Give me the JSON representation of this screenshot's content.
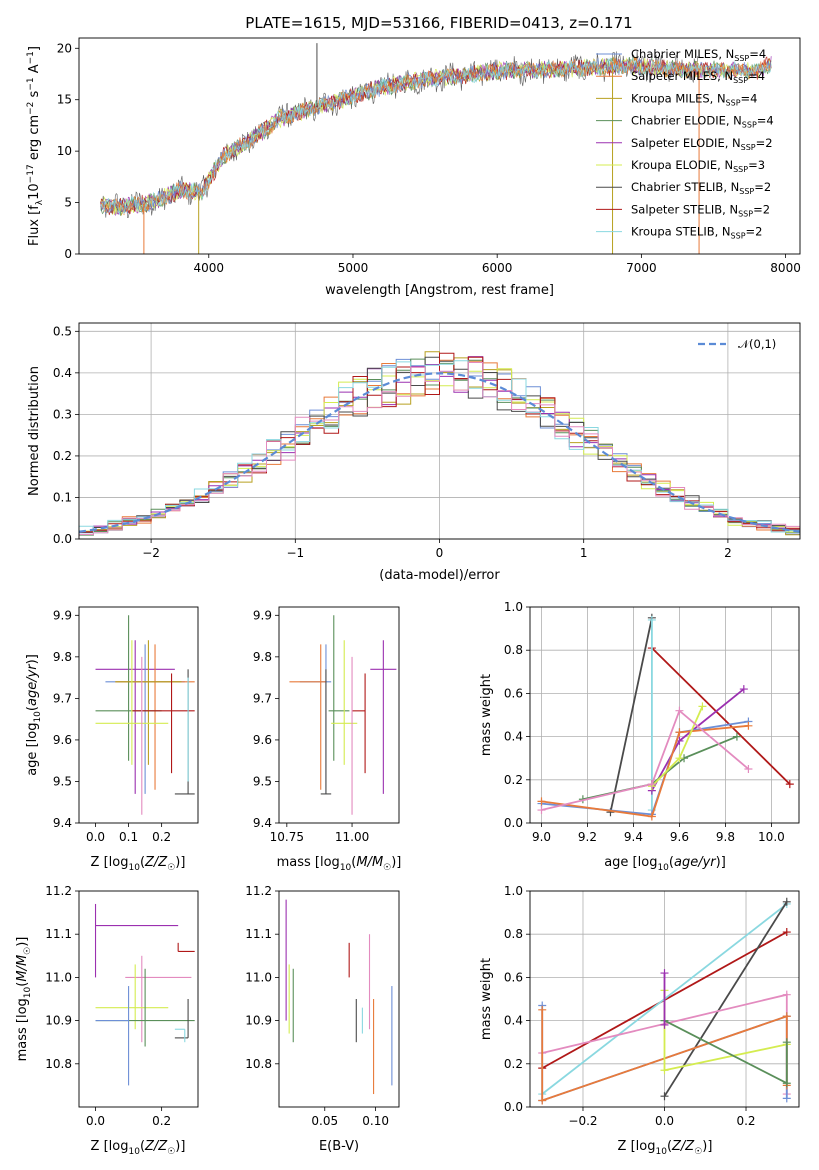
{
  "figure": {
    "title": "PLATE=1615, MJD=53166, FIBERID=0413, z=0.171"
  },
  "colors": {
    "Chabrier MILES": "#6d8fd6",
    "Salpeter MILES": "#e87a3a",
    "Kroupa MILES": "#b8a020",
    "Chabrier ELODIE": "#5a8f5a",
    "Salpeter ELODIE": "#9b30b0",
    "Kroupa ELODIE": "#d4ec50",
    "Chabrier STELIB": "#4a4a4a",
    "Salpeter STELIB": "#b01818",
    "Kroupa STELIB": "#8ad8e0",
    "pink": "#e38bbf",
    "gauss": "#5b8bd6"
  },
  "chart_data": [
    {
      "id": "spectrum",
      "type": "line",
      "title": "PLATE=1615, MJD=53166, FIBERID=0413, z=0.171",
      "xlabel": "wavelength [Angstrom, rest frame]",
      "ylabel": "Flux [f_λ 10^-17 erg cm^-2 s^-1 A^-1]",
      "xlim": [
        3100,
        8100
      ],
      "ylim": [
        0,
        21
      ],
      "xticks": [
        4000,
        5000,
        6000,
        7000,
        8000
      ],
      "yticks": [
        0,
        5,
        10,
        15,
        20
      ],
      "legend": "upper-right",
      "legend_entries": [
        {
          "key": "Chabrier MILES",
          "label": "Chabrier MILES, N",
          "sub": "SSP",
          "tail": "=4"
        },
        {
          "key": "Salpeter MILES",
          "label": "Salpeter MILES, N",
          "sub": "SSP",
          "tail": "=4"
        },
        {
          "key": "Kroupa MILES",
          "label": "Kroupa MILES, N",
          "sub": "SSP",
          "tail": "=4"
        },
        {
          "key": "Chabrier ELODIE",
          "label": "Chabrier ELODIE, N",
          "sub": "SSP",
          "tail": "=4"
        },
        {
          "key": "Salpeter ELODIE",
          "label": "Salpeter ELODIE, N",
          "sub": "SSP",
          "tail": "=2"
        },
        {
          "key": "Kroupa ELODIE",
          "label": "Kroupa ELODIE, N",
          "sub": "SSP",
          "tail": "=3"
        },
        {
          "key": "Chabrier STELIB",
          "label": "Chabrier STELIB, N",
          "sub": "SSP",
          "tail": "=2"
        },
        {
          "key": "Salpeter STELIB",
          "label": "Salpeter STELIB, N",
          "sub": "SSP",
          "tail": "=2"
        },
        {
          "key": "Kroupa STELIB",
          "label": "Kroupa STELIB, N",
          "sub": "SSP",
          "tail": "=2"
        }
      ],
      "continuum": [
        [
          3250,
          4.7
        ],
        [
          3400,
          4.6
        ],
        [
          3600,
          5.0
        ],
        [
          3800,
          6.2
        ],
        [
          3950,
          6.0
        ],
        [
          4100,
          9.5
        ],
        [
          4300,
          11.2
        ],
        [
          4500,
          13.2
        ],
        [
          4800,
          14.5
        ],
        [
          5000,
          15.3
        ],
        [
          5200,
          16.2
        ],
        [
          5500,
          17.0
        ],
        [
          5800,
          17.4
        ],
        [
          6000,
          17.8
        ],
        [
          6300,
          17.9
        ],
        [
          6600,
          18.1
        ],
        [
          6900,
          18.3
        ],
        [
          7200,
          18.0
        ],
        [
          7500,
          17.9
        ],
        [
          7800,
          17.8
        ],
        [
          7900,
          18.5
        ]
      ],
      "features": [
        {
          "wl": 3550,
          "v": 0,
          "series": "Salpeter MILES"
        },
        {
          "wl": 3930,
          "v": 0,
          "series": "Kroupa MILES"
        },
        {
          "wl": 4750,
          "v": 20.5,
          "series": "Chabrier STELIB"
        },
        {
          "wl": 6800,
          "v": 0,
          "series": "Kroupa MILES"
        },
        {
          "wl": 7400,
          "v": 0,
          "series": "Salpeter MILES"
        }
      ]
    },
    {
      "id": "residuals",
      "type": "histogram",
      "xlabel": "(data-model)/error",
      "ylabel": "Normed distribution",
      "xlim": [
        -2.5,
        2.5
      ],
      "ylim": [
        0,
        0.52
      ],
      "xticks": [
        -2,
        -1,
        0,
        1,
        2
      ],
      "yticks": [
        0.0,
        0.1,
        0.2,
        0.3,
        0.4,
        0.5
      ],
      "grid": true,
      "bin_width": 0.1,
      "legend": "upper-right",
      "reference_curve": {
        "label": "𝒩(0,1)",
        "mean": 0,
        "sigma": 1
      }
    },
    {
      "id": "age-vs-Z",
      "type": "errorbar",
      "xlabel": "Z [log10(Z/Z☉)]",
      "ylabel": "age [log10(age/yr)]",
      "xlim": [
        -0.05,
        0.31
      ],
      "ylim": [
        9.4,
        9.92
      ],
      "xticks": [
        0.0,
        0.1,
        0.2
      ],
      "yticks": [
        9.4,
        9.5,
        9.6,
        9.7,
        9.8,
        9.9
      ],
      "points": [
        {
          "series": "Salpeter ELODIE",
          "x": 0.12,
          "xerr": [
            0.12,
            0.12
          ],
          "y": 9.77,
          "yerr": [
            0.3,
            0.07
          ]
        },
        {
          "series": "Chabrier MILES",
          "x": 0.15,
          "xerr": [
            0.12,
            0.12
          ],
          "y": 9.74,
          "yerr": [
            0.27,
            0.09
          ]
        },
        {
          "series": "Salpeter MILES",
          "x": 0.18,
          "xerr": [
            0.12,
            0.12
          ],
          "y": 9.74,
          "yerr": [
            0.26,
            0.09
          ]
        },
        {
          "series": "Chabrier ELODIE",
          "x": 0.1,
          "xerr": [
            0.1,
            0.1
          ],
          "y": 9.67,
          "yerr": [
            0.12,
            0.23
          ]
        },
        {
          "series": "Kroupa MILES",
          "x": 0.16,
          "xerr": [
            0.1,
            0.1
          ],
          "y": 9.74,
          "yerr": [
            0.2,
            0.1
          ]
        },
        {
          "series": "Salpeter STELIB",
          "x": 0.23,
          "xerr": [
            0.12,
            0.07
          ],
          "y": 9.67,
          "yerr": [
            0.15,
            0.09
          ]
        },
        {
          "series": "Kroupa ELODIE",
          "x": 0.11,
          "xerr": [
            0.11,
            0.11
          ],
          "y": 9.64,
          "yerr": [
            0.1,
            0.2
          ]
        },
        {
          "series": "Chabrier STELIB",
          "x": 0.28,
          "xerr": [
            0.04,
            0.02
          ],
          "y": 9.47,
          "yerr": [
            0.0,
            0.3
          ]
        },
        {
          "series": "pink",
          "x": 0.14,
          "xerr": [
            0.0,
            0.0
          ],
          "y": 9.6,
          "yerr": [
            0.18,
            0.2
          ]
        },
        {
          "series": "Kroupa STELIB",
          "x": 0.28,
          "xerr": [
            0.0,
            0.0
          ],
          "y": 9.6,
          "yerr": [
            0.1,
            0.15
          ]
        }
      ]
    },
    {
      "id": "age-vs-mass",
      "type": "errorbar",
      "xlabel": "mass [log10(M/M☉)]",
      "ylabel": "",
      "xlim": [
        10.72,
        11.18
      ],
      "ylim": [
        9.4,
        9.92
      ],
      "xticks": [
        10.75,
        11.0
      ],
      "yticks": [
        9.4,
        9.5,
        9.6,
        9.7,
        9.8,
        9.9
      ],
      "points": [
        {
          "series": "Salpeter ELODIE",
          "x": 11.12,
          "xerr": [
            0.05,
            0.05
          ],
          "y": 9.77,
          "yerr": [
            0.3,
            0.07
          ]
        },
        {
          "series": "Chabrier MILES",
          "x": 10.9,
          "xerr": [
            0.1,
            0.02
          ],
          "y": 9.74,
          "yerr": [
            0.27,
            0.09
          ]
        },
        {
          "series": "Salpeter MILES",
          "x": 10.88,
          "xerr": [
            0.12,
            0.02
          ],
          "y": 9.74,
          "yerr": [
            0.26,
            0.09
          ]
        },
        {
          "series": "Chabrier ELODIE",
          "x": 10.93,
          "xerr": [
            0.02,
            0.06
          ],
          "y": 9.67,
          "yerr": [
            0.12,
            0.23
          ]
        },
        {
          "series": "Salpeter STELIB",
          "x": 11.05,
          "xerr": [
            0.05,
            0.0
          ],
          "y": 9.67,
          "yerr": [
            0.15,
            0.09
          ]
        },
        {
          "series": "Kroupa ELODIE",
          "x": 10.97,
          "xerr": [
            0.05,
            0.05
          ],
          "y": 9.64,
          "yerr": [
            0.1,
            0.2
          ]
        },
        {
          "series": "Chabrier STELIB",
          "x": 10.9,
          "xerr": [
            0.02,
            0.02
          ],
          "y": 9.47,
          "yerr": [
            0.0,
            0.3
          ]
        },
        {
          "series": "pink",
          "x": 11.0,
          "xerr": [
            0.0,
            0.0
          ],
          "y": 9.6,
          "yerr": [
            0.18,
            0.2
          ]
        }
      ]
    },
    {
      "id": "weight-vs-age",
      "type": "line",
      "xlabel": "age  [log10(age/yr)]",
      "ylabel": "mass weight",
      "xlim": [
        8.95,
        10.12
      ],
      "ylim": [
        0,
        1
      ],
      "xticks": [
        9.0,
        9.2,
        9.4,
        9.6,
        9.8,
        10.0
      ],
      "yticks": [
        0.0,
        0.2,
        0.4,
        0.6,
        0.8,
        1.0
      ],
      "grid": true,
      "series": [
        {
          "series": "Chabrier STELIB",
          "x": [
            9.3,
            9.48
          ],
          "y": [
            0.05,
            0.95
          ]
        },
        {
          "series": "Salpeter STELIB",
          "x": [
            9.48,
            10.08
          ],
          "y": [
            0.81,
            0.18
          ]
        },
        {
          "series": "Kroupa STELIB",
          "x": [
            9.48,
            9.48
          ],
          "y": [
            0.06,
            0.94
          ]
        },
        {
          "series": "Salpeter ELODIE",
          "x": [
            9.48,
            9.6,
            9.88
          ],
          "y": [
            0.15,
            0.38,
            0.62
          ]
        },
        {
          "series": "Chabrier MILES",
          "x": [
            9.0,
            9.48,
            9.6,
            9.9
          ],
          "y": [
            0.09,
            0.04,
            0.42,
            0.47
          ]
        },
        {
          "series": "Salpeter MILES",
          "x": [
            9.0,
            9.48,
            9.6,
            9.9
          ],
          "y": [
            0.1,
            0.03,
            0.42,
            0.45
          ]
        },
        {
          "series": "Chabrier ELODIE",
          "x": [
            9.18,
            9.48,
            9.62,
            9.85
          ],
          "y": [
            0.11,
            0.18,
            0.3,
            0.4
          ]
        },
        {
          "series": "Kroupa ELODIE",
          "x": [
            9.48,
            9.6,
            9.7
          ],
          "y": [
            0.17,
            0.3,
            0.54
          ]
        },
        {
          "series": "pink",
          "x": [
            9.0,
            9.48,
            9.6,
            9.9
          ],
          "y": [
            0.06,
            0.18,
            0.52,
            0.25
          ]
        }
      ]
    },
    {
      "id": "mass-vs-Z",
      "type": "errorbar",
      "xlabel": "Z [log10(Z/Z☉)]",
      "ylabel": "mass [log10(M/M☉)]",
      "xlim": [
        -0.05,
        0.31
      ],
      "ylim": [
        10.7,
        11.2
      ],
      "xticks": [
        0.0,
        0.2
      ],
      "yticks": [
        10.8,
        10.9,
        11.0,
        11.1,
        11.2
      ],
      "points": [
        {
          "series": "Salpeter ELODIE",
          "x": 0.0,
          "xerr": [
            0.0,
            0.25
          ],
          "y": 11.12,
          "yerr": [
            0.12,
            0.05
          ]
        },
        {
          "series": "Salpeter STELIB",
          "x": 0.25,
          "xerr": [
            0.0,
            0.05
          ],
          "y": 11.06,
          "yerr": [
            0.0,
            0.02
          ]
        },
        {
          "series": "pink",
          "x": 0.14,
          "xerr": [
            0.05,
            0.15
          ],
          "y": 11.0,
          "yerr": [
            0.15,
            0.05
          ]
        },
        {
          "series": "Kroupa ELODIE",
          "x": 0.12,
          "xerr": [
            0.12,
            0.1
          ],
          "y": 10.93,
          "yerr": [
            0.05,
            0.1
          ]
        },
        {
          "series": "Chabrier ELODIE",
          "x": 0.15,
          "xerr": [
            0.15,
            0.15
          ],
          "y": 10.9,
          "yerr": [
            0.06,
            0.12
          ]
        },
        {
          "series": "Chabrier MILES",
          "x": 0.1,
          "xerr": [
            0.1,
            0.0
          ],
          "y": 10.9,
          "yerr": [
            0.15,
            0.08
          ]
        },
        {
          "series": "Chabrier STELIB",
          "x": 0.28,
          "xerr": [
            0.04,
            0.0
          ],
          "y": 10.86,
          "yerr": [
            0.0,
            0.09
          ]
        },
        {
          "series": "Kroupa STELIB",
          "x": 0.27,
          "xerr": [
            0.03,
            0.0
          ],
          "y": 10.88,
          "yerr": [
            0.03,
            0.0
          ]
        }
      ]
    },
    {
      "id": "mass-vs-ebv",
      "type": "errorbar",
      "xlabel": "E(B-V)",
      "ylabel": "",
      "xlim": [
        0.005,
        0.123
      ],
      "ylim": [
        10.7,
        11.2
      ],
      "xticks": [
        0.05,
        0.1
      ],
      "yticks": [
        10.8,
        10.9,
        11.0,
        11.1,
        11.2
      ],
      "points": [
        {
          "series": "Salpeter ELODIE",
          "x": 0.012,
          "xerr": [
            0,
            0
          ],
          "y": 11.0,
          "yerr": [
            0.1,
            0.18
          ]
        },
        {
          "series": "Kroupa ELODIE",
          "x": 0.015,
          "xerr": [
            0,
            0
          ],
          "y": 10.95,
          "yerr": [
            0.08,
            0.08
          ]
        },
        {
          "series": "Chabrier ELODIE",
          "x": 0.019,
          "xerr": [
            0,
            0
          ],
          "y": 10.95,
          "yerr": [
            0.1,
            0.07
          ]
        },
        {
          "series": "Salpeter STELIB",
          "x": 0.074,
          "xerr": [
            0,
            0
          ],
          "y": 11.03,
          "yerr": [
            0.03,
            0.05
          ]
        },
        {
          "series": "Chabrier STELIB",
          "x": 0.081,
          "xerr": [
            0,
            0
          ],
          "y": 10.9,
          "yerr": [
            0.05,
            0.05
          ]
        },
        {
          "series": "Kroupa STELIB",
          "x": 0.087,
          "xerr": [
            0,
            0
          ],
          "y": 10.9,
          "yerr": [
            0.03,
            0.03
          ]
        },
        {
          "series": "pink",
          "x": 0.094,
          "xerr": [
            0,
            0
          ],
          "y": 11.0,
          "yerr": [
            0.12,
            0.1
          ]
        },
        {
          "series": "Salpeter MILES",
          "x": 0.098,
          "xerr": [
            0,
            0
          ],
          "y": 10.85,
          "yerr": [
            0.12,
            0.1
          ]
        },
        {
          "series": "Chabrier MILES",
          "x": 0.116,
          "xerr": [
            0,
            0
          ],
          "y": 10.9,
          "yerr": [
            0.15,
            0.08
          ]
        }
      ]
    },
    {
      "id": "weight-vs-Z",
      "type": "line",
      "xlabel": "Z [log10(Z/Z☉)]",
      "ylabel": "mass weight",
      "xlim": [
        -0.33,
        0.33
      ],
      "ylim": [
        0,
        1
      ],
      "xticks": [
        -0.2,
        0.0,
        0.2
      ],
      "yticks": [
        0.0,
        0.2,
        0.4,
        0.6,
        0.8,
        1.0
      ],
      "grid": true,
      "series": [
        {
          "series": "Salpeter STELIB",
          "x": [
            -0.3,
            0.3
          ],
          "y": [
            0.18,
            0.81
          ]
        },
        {
          "series": "Kroupa STELIB",
          "x": [
            -0.3,
            0.3
          ],
          "y": [
            0.06,
            0.94
          ]
        },
        {
          "series": "Chabrier STELIB",
          "x": [
            0.0,
            0.3
          ],
          "y": [
            0.05,
            0.95
          ]
        },
        {
          "series": "pink",
          "x": [
            -0.3,
            0.3,
            0.3
          ],
          "y": [
            0.25,
            0.52,
            0.06
          ]
        },
        {
          "series": "Chabrier MILES",
          "x": [
            -0.3,
            -0.3,
            0.3,
            0.3
          ],
          "y": [
            0.47,
            0.03,
            0.42,
            0.04
          ]
        },
        {
          "series": "Salpeter MILES",
          "x": [
            -0.3,
            -0.3,
            0.3,
            0.3
          ],
          "y": [
            0.45,
            0.03,
            0.42,
            0.1
          ]
        },
        {
          "series": "Kroupa ELODIE",
          "x": [
            0.0,
            0.0,
            0.3
          ],
          "y": [
            0.54,
            0.17,
            0.29
          ]
        },
        {
          "series": "Chabrier ELODIE",
          "x": [
            0.0,
            0.3,
            0.3
          ],
          "y": [
            0.4,
            0.11,
            0.3
          ]
        },
        {
          "series": "Salpeter ELODIE",
          "x": [
            0.0,
            0.0
          ],
          "y": [
            0.62,
            0.38
          ]
        }
      ]
    }
  ]
}
